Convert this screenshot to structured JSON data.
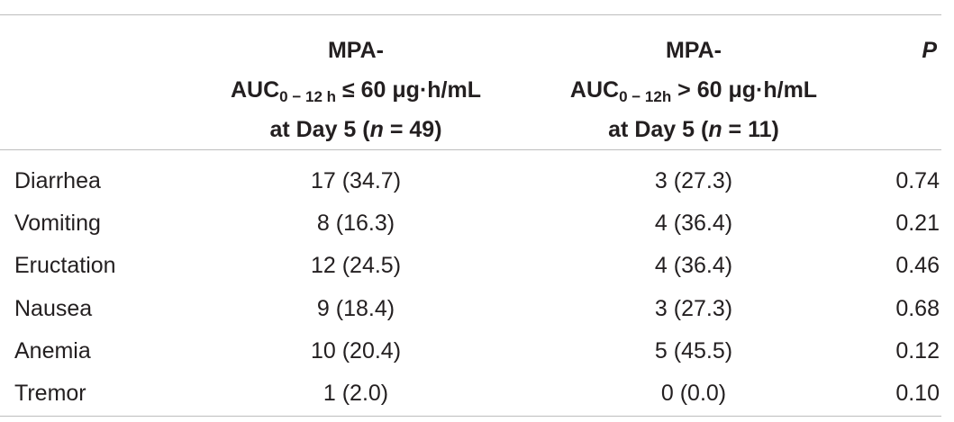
{
  "header": {
    "col1": {
      "line1": "MPA-",
      "line2_main": "AUC",
      "line2_sub": "0 − 12 h",
      "line2_rest": " ≤ 60 μg·h/mL",
      "line3_pre": "at Day 5 (",
      "line3_n": "n",
      "line3_post": " = 49)"
    },
    "col2": {
      "line1": "MPA-",
      "line2_main": "AUC",
      "line2_sub": "0 − 12h",
      "line2_rest": " > 60 μg·h/mL",
      "line3_pre": "at Day 5 (",
      "line3_n": "n",
      "line3_post": " = 11)"
    },
    "col3": "P"
  },
  "rows": [
    {
      "label": "Diarrhea",
      "group1": "17 (34.7)",
      "group2": "3 (27.3)",
      "p": "0.74"
    },
    {
      "label": "Vomiting",
      "group1": "8 (16.3)",
      "group2": "4 (36.4)",
      "p": "0.21"
    },
    {
      "label": "Eructation",
      "group1": "12 (24.5)",
      "group2": "4 (36.4)",
      "p": "0.46"
    },
    {
      "label": "Nausea",
      "group1": "9 (18.4)",
      "group2": "3 (27.3)",
      "p": "0.68"
    },
    {
      "label": "Anemia",
      "group1": "10 (20.4)",
      "group2": "5 (45.5)",
      "p": "0.12"
    },
    {
      "label": "Tremor",
      "group1": "1 (2.0)",
      "group2": "0 (0.0)",
      "p": "0.10"
    }
  ]
}
